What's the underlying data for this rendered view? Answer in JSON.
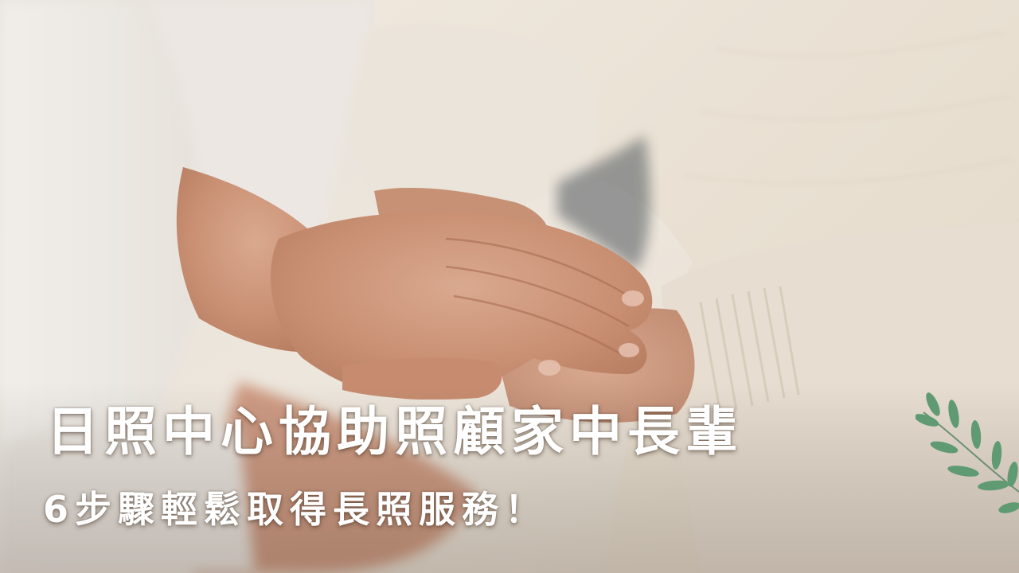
{
  "banner": {
    "headline": "日照中心協助照顧家中長輩",
    "subheadline": "6步驟輕鬆取得長照服務！"
  },
  "photo": {
    "icon": "holding-hands-photo"
  },
  "decoration": {
    "icon": "leaf-branch-icon",
    "color": "#4f8a6a"
  }
}
